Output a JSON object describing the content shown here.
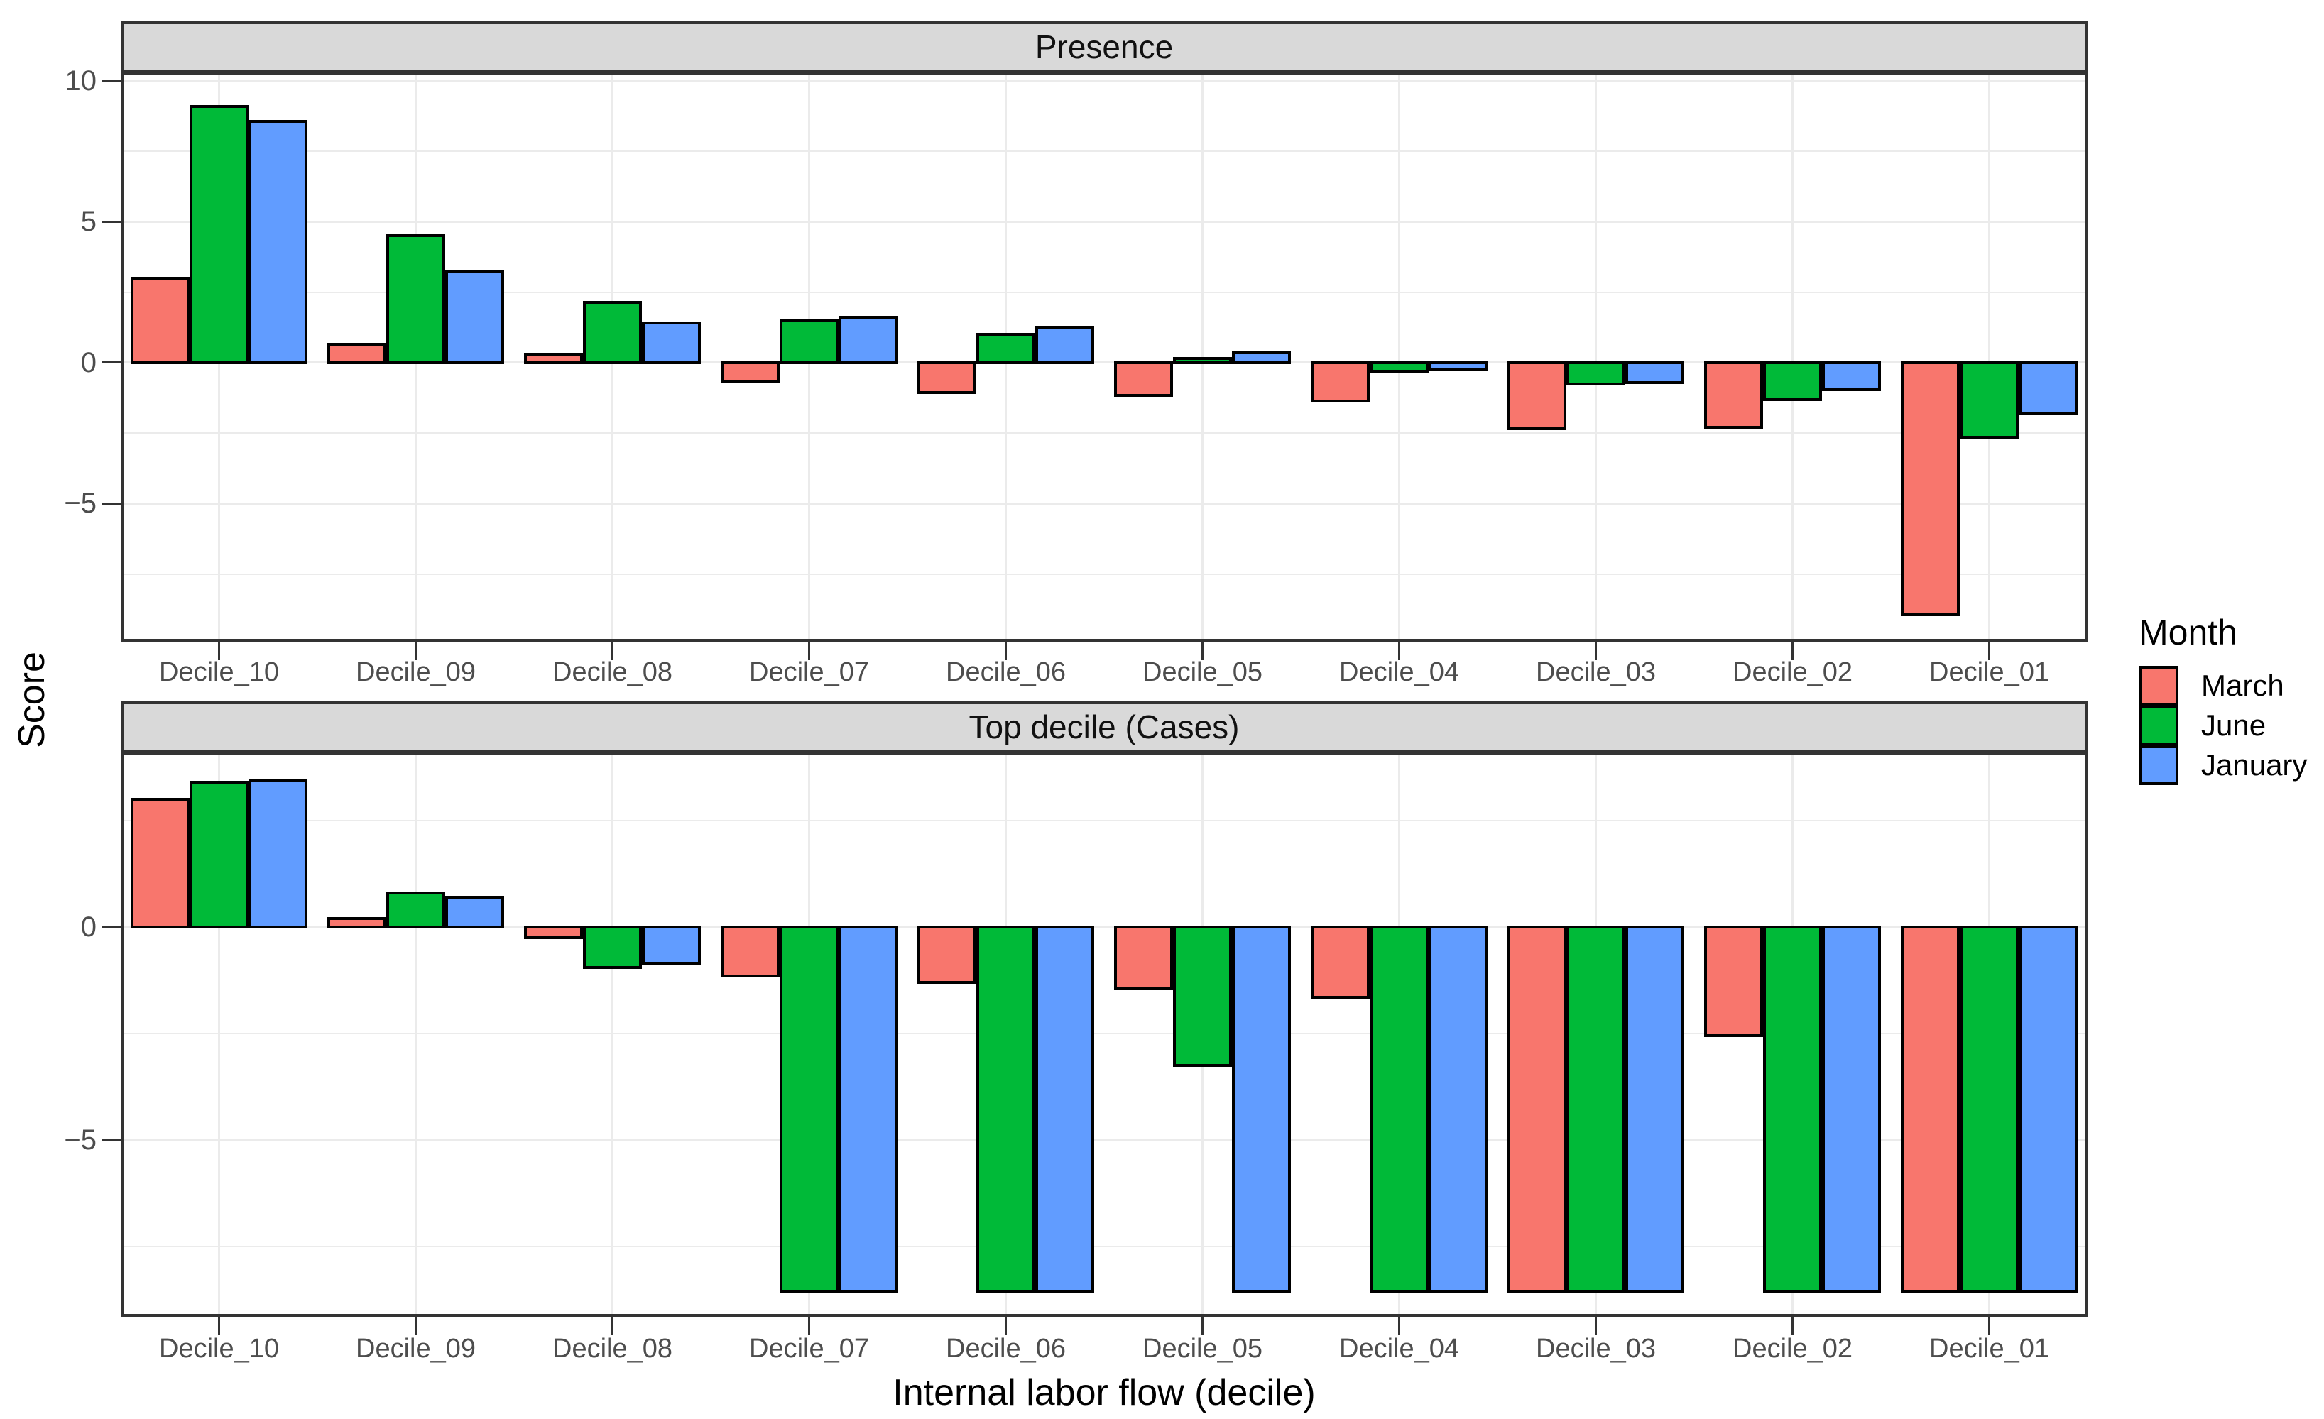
{
  "figure": {
    "x_axis_title": "Internal labor flow (decile)",
    "y_axis_title": "Score",
    "categories": [
      "Decile_10",
      "Decile_09",
      "Decile_08",
      "Decile_07",
      "Decile_06",
      "Decile_05",
      "Decile_04",
      "Decile_03",
      "Decile_02",
      "Decile_01"
    ],
    "legend": {
      "title": "Month",
      "entries": [
        {
          "label": "March",
          "color": "#F8766D"
        },
        {
          "label": "June",
          "color": "#00BA38"
        },
        {
          "label": "January",
          "color": "#619CFF"
        }
      ]
    },
    "colors": {
      "bar_outline": "#000000",
      "panel_border": "#333333",
      "strip_fill": "#D9D9D9",
      "gridline": "#EBEBEB",
      "tick_text": "#4D4D4D"
    }
  },
  "chart_data": [
    {
      "type": "bar",
      "facet": "Presence",
      "legend_position": "right",
      "grid": true,
      "categories": [
        "Decile_10",
        "Decile_09",
        "Decile_08",
        "Decile_07",
        "Decile_06",
        "Decile_05",
        "Decile_04",
        "Decile_03",
        "Decile_02",
        "Decile_01"
      ],
      "series": [
        {
          "name": "March",
          "color": "#F8766D",
          "values": [
            3.0,
            0.65,
            0.3,
            -0.65,
            -1.05,
            -1.15,
            -1.35,
            -2.35,
            -2.3,
            -8.95
          ]
        },
        {
          "name": "June",
          "color": "#00BA38",
          "values": [
            9.1,
            4.5,
            2.15,
            1.5,
            1.0,
            0.15,
            -0.3,
            -0.75,
            -1.3,
            -2.65
          ]
        },
        {
          "name": "January",
          "color": "#619CFF",
          "values": [
            8.55,
            3.25,
            1.4,
            1.6,
            1.25,
            0.35,
            -0.25,
            -0.7,
            -0.95,
            -1.8
          ]
        }
      ],
      "ylim": [
        -9.9,
        10.3
      ],
      "yticks": [
        {
          "v": 10,
          "label": "10"
        },
        {
          "v": 5,
          "label": "5"
        },
        {
          "v": 0,
          "label": "0"
        },
        {
          "v": -5,
          "label": "−5"
        }
      ],
      "yminor": [
        7.5,
        2.5,
        -2.5,
        -7.5
      ]
    },
    {
      "type": "bar",
      "facet": "Top decile (Cases)",
      "legend_position": "right",
      "grid": true,
      "categories": [
        "Decile_10",
        "Decile_09",
        "Decile_08",
        "Decile_07",
        "Decile_06",
        "Decile_05",
        "Decile_04",
        "Decile_03",
        "Decile_02",
        "Decile_01"
      ],
      "series": [
        {
          "name": "March",
          "color": "#F8766D",
          "values": [
            3.0,
            0.2,
            -0.25,
            -1.15,
            -1.3,
            -1.45,
            -1.65,
            -8.55,
            -2.55,
            -8.55
          ]
        },
        {
          "name": "June",
          "color": "#00BA38",
          "values": [
            3.4,
            0.8,
            -0.95,
            -8.55,
            -8.55,
            -3.25,
            -8.55,
            -8.55,
            -8.55,
            -8.55
          ]
        },
        {
          "name": "January",
          "color": "#619CFF",
          "values": [
            3.45,
            0.7,
            -0.85,
            -8.55,
            -8.55,
            -8.55,
            -8.55,
            -8.55,
            -8.55,
            -8.55
          ]
        }
      ],
      "ylim": [
        -9.15,
        4.1
      ],
      "yticks": [
        {
          "v": 0,
          "label": "0"
        },
        {
          "v": -5,
          "label": "−5"
        }
      ],
      "yminor": [
        2.5,
        -2.5,
        -7.5
      ]
    }
  ]
}
